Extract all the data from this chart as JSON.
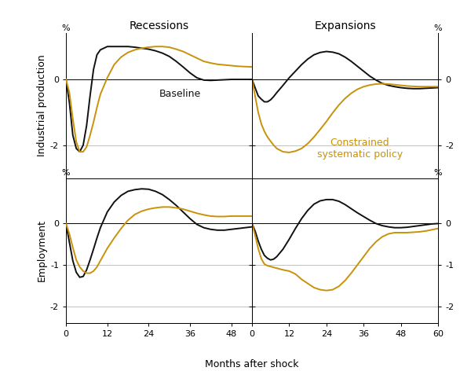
{
  "col_titles": [
    "Recessions",
    "Expansions"
  ],
  "row_labels": [
    "Industrial production",
    "Employment"
  ],
  "xlabel": "Months after shock",
  "black_color": "#111111",
  "gold_color": "#C8920A",
  "baseline_label": "Baseline",
  "constrained_label": "Constrained\nsystematic policy",
  "rec_ip_x": [
    0,
    1,
    2,
    3,
    4,
    5,
    6,
    7,
    8,
    9,
    10,
    12,
    14,
    16,
    18,
    20,
    22,
    24,
    26,
    28,
    30,
    32,
    34,
    36,
    38,
    40,
    42,
    44,
    46,
    48,
    50,
    52,
    54
  ],
  "rec_ip_black": [
    0.0,
    -0.7,
    -1.7,
    -2.1,
    -2.2,
    -2.0,
    -1.4,
    -0.5,
    0.3,
    0.75,
    0.9,
    1.0,
    1.0,
    1.0,
    1.0,
    0.98,
    0.95,
    0.92,
    0.87,
    0.8,
    0.7,
    0.55,
    0.38,
    0.2,
    0.05,
    -0.02,
    -0.03,
    -0.02,
    -0.01,
    0.0,
    0.0,
    0.0,
    0.0
  ],
  "rec_ip_gold": [
    0.0,
    -0.4,
    -1.2,
    -1.9,
    -2.2,
    -2.2,
    -2.05,
    -1.7,
    -1.3,
    -0.85,
    -0.45,
    0.05,
    0.45,
    0.68,
    0.82,
    0.9,
    0.95,
    0.98,
    1.0,
    1.0,
    0.98,
    0.92,
    0.85,
    0.75,
    0.65,
    0.55,
    0.5,
    0.46,
    0.44,
    0.42,
    0.4,
    0.39,
    0.38
  ],
  "exp_ip_x": [
    0,
    1,
    2,
    3,
    4,
    5,
    6,
    7,
    8,
    10,
    12,
    14,
    16,
    18,
    20,
    22,
    24,
    26,
    28,
    30,
    32,
    34,
    36,
    38,
    40,
    42,
    44,
    46,
    48,
    50,
    52,
    54,
    56,
    58,
    60
  ],
  "exp_ip_black": [
    0.0,
    -0.25,
    -0.5,
    -0.6,
    -0.68,
    -0.68,
    -0.62,
    -0.52,
    -0.4,
    -0.18,
    0.05,
    0.25,
    0.45,
    0.62,
    0.75,
    0.82,
    0.85,
    0.83,
    0.78,
    0.68,
    0.55,
    0.4,
    0.25,
    0.1,
    -0.02,
    -0.12,
    -0.18,
    -0.22,
    -0.25,
    -0.27,
    -0.28,
    -0.28,
    -0.27,
    -0.26,
    -0.25
  ],
  "exp_ip_gold": [
    0.0,
    -0.5,
    -1.0,
    -1.35,
    -1.58,
    -1.75,
    -1.88,
    -2.0,
    -2.1,
    -2.2,
    -2.22,
    -2.18,
    -2.1,
    -1.95,
    -1.75,
    -1.52,
    -1.28,
    -1.02,
    -0.78,
    -0.58,
    -0.42,
    -0.3,
    -0.22,
    -0.17,
    -0.14,
    -0.13,
    -0.14,
    -0.16,
    -0.18,
    -0.2,
    -0.21,
    -0.22,
    -0.22,
    -0.22,
    -0.22
  ],
  "rec_emp_x": [
    0,
    1,
    2,
    3,
    4,
    5,
    6,
    7,
    8,
    9,
    10,
    12,
    14,
    16,
    18,
    20,
    22,
    24,
    26,
    28,
    30,
    32,
    34,
    36,
    38,
    40,
    42,
    44,
    46,
    48,
    50,
    52,
    54
  ],
  "rec_emp_black": [
    0.0,
    -0.45,
    -0.9,
    -1.18,
    -1.3,
    -1.28,
    -1.12,
    -0.88,
    -0.62,
    -0.35,
    -0.1,
    0.28,
    0.52,
    0.68,
    0.78,
    0.82,
    0.84,
    0.83,
    0.78,
    0.7,
    0.58,
    0.44,
    0.28,
    0.12,
    -0.02,
    -0.1,
    -0.14,
    -0.16,
    -0.16,
    -0.14,
    -0.12,
    -0.1,
    -0.08
  ],
  "rec_emp_gold": [
    0.0,
    -0.25,
    -0.58,
    -0.88,
    -1.05,
    -1.15,
    -1.2,
    -1.2,
    -1.15,
    -1.05,
    -0.9,
    -0.6,
    -0.35,
    -0.12,
    0.08,
    0.22,
    0.3,
    0.35,
    0.38,
    0.4,
    0.4,
    0.38,
    0.35,
    0.3,
    0.25,
    0.21,
    0.18,
    0.17,
    0.17,
    0.18,
    0.18,
    0.18,
    0.18
  ],
  "exp_emp_x": [
    0,
    1,
    2,
    3,
    4,
    5,
    6,
    7,
    8,
    10,
    12,
    14,
    16,
    18,
    20,
    22,
    24,
    26,
    28,
    30,
    32,
    34,
    36,
    38,
    40,
    42,
    44,
    46,
    48,
    50,
    52,
    54,
    56,
    58,
    60
  ],
  "exp_emp_black": [
    0.0,
    -0.18,
    -0.42,
    -0.62,
    -0.77,
    -0.84,
    -0.88,
    -0.86,
    -0.8,
    -0.62,
    -0.38,
    -0.12,
    0.12,
    0.32,
    0.47,
    0.55,
    0.58,
    0.58,
    0.54,
    0.46,
    0.36,
    0.26,
    0.17,
    0.08,
    0.0,
    -0.05,
    -0.08,
    -0.1,
    -0.1,
    -0.09,
    -0.07,
    -0.05,
    -0.03,
    -0.01,
    0.0
  ],
  "exp_emp_gold": [
    0.0,
    -0.28,
    -0.6,
    -0.85,
    -0.98,
    -1.02,
    -1.04,
    -1.06,
    -1.08,
    -1.12,
    -1.15,
    -1.22,
    -1.35,
    -1.45,
    -1.55,
    -1.6,
    -1.62,
    -1.6,
    -1.52,
    -1.38,
    -1.2,
    -1.0,
    -0.8,
    -0.6,
    -0.44,
    -0.32,
    -0.25,
    -0.22,
    -0.22,
    -0.22,
    -0.21,
    -0.2,
    -0.18,
    -0.15,
    -0.12
  ],
  "ip_ylim": [
    -3.0,
    1.4
  ],
  "ip_yticks": [
    -2,
    0
  ],
  "emp_ylim": [
    -2.4,
    1.1
  ],
  "emp_yticks": [
    -2,
    -1,
    0
  ],
  "rec_xlim": [
    0,
    54
  ],
  "rec_xticks": [
    0,
    12,
    24,
    36,
    48
  ],
  "exp_xlim": [
    0,
    60
  ],
  "exp_xticks": [
    0,
    12,
    24,
    36,
    48,
    60
  ]
}
